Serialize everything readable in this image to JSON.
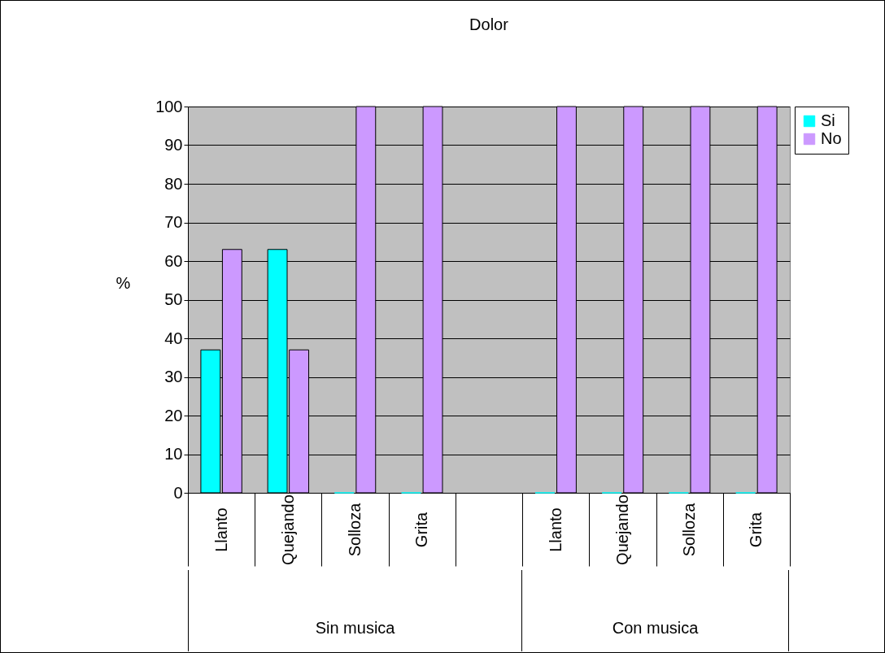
{
  "chart_data": {
    "type": "bar",
    "title": "Dolor",
    "ylabel": "%",
    "categories": [
      "Llanto",
      "Quejando",
      "Solloza",
      "Grita",
      null,
      "Llanto",
      "Quejando",
      "Solloza",
      "Grita"
    ],
    "series": [
      {
        "name": "Si",
        "color": "#00ffff",
        "values": [
          37,
          63,
          0,
          0,
          null,
          0,
          0,
          0,
          0
        ]
      },
      {
        "name": "No",
        "color": "#cc99ff",
        "values": [
          63,
          37,
          100,
          100,
          null,
          100,
          100,
          100,
          100
        ]
      }
    ],
    "ylim": [
      0,
      100
    ],
    "yticks": [
      0,
      10,
      20,
      30,
      40,
      50,
      60,
      70,
      80,
      90,
      100
    ],
    "grid": "y",
    "legend": "right",
    "annotations": [
      "Sin musica",
      "Con musica"
    ]
  }
}
